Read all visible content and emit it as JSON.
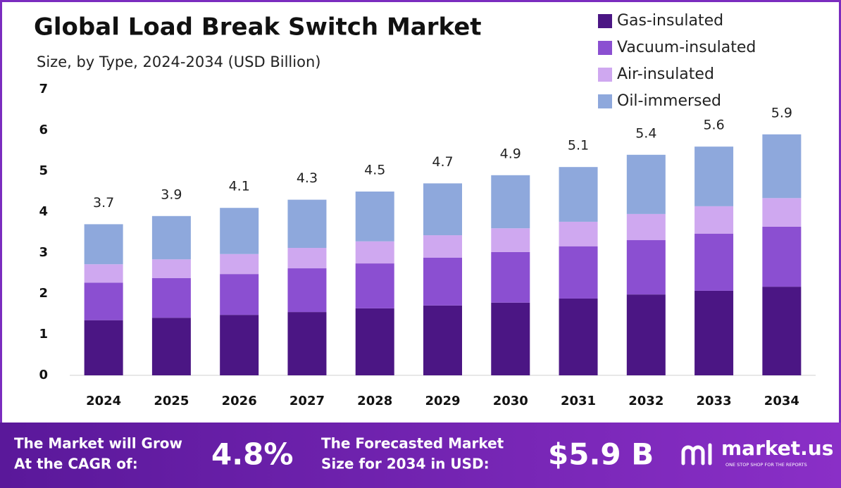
{
  "chart_data": {
    "type": "bar",
    "stacked": true,
    "title": "Global Load Break Switch Market",
    "subtitle": "Size, by Type, 2024-2034 (USD Billion)",
    "categories": [
      "2024",
      "2025",
      "2026",
      "2027",
      "2028",
      "2029",
      "2030",
      "2031",
      "2032",
      "2033",
      "2034"
    ],
    "series": [
      {
        "name": "Gas-insulated",
        "color": "#4b1684",
        "values": [
          1.35,
          1.41,
          1.48,
          1.55,
          1.64,
          1.71,
          1.78,
          1.88,
          1.98,
          2.07,
          2.17
        ]
      },
      {
        "name": "Vacuum-insulated",
        "color": "#8b4fd1",
        "values": [
          0.92,
          0.97,
          1.0,
          1.07,
          1.1,
          1.17,
          1.24,
          1.28,
          1.33,
          1.4,
          1.47
        ]
      },
      {
        "name": "Air-insulated",
        "color": "#cfa8f0",
        "values": [
          0.45,
          0.46,
          0.49,
          0.5,
          0.54,
          0.55,
          0.58,
          0.6,
          0.64,
          0.67,
          0.7
        ]
      },
      {
        "name": "Oil-immersed",
        "color": "#8ea8dc",
        "values": [
          0.98,
          1.06,
          1.13,
          1.18,
          1.22,
          1.27,
          1.3,
          1.34,
          1.45,
          1.46,
          1.56
        ]
      }
    ],
    "totals": [
      3.7,
      3.9,
      4.1,
      4.3,
      4.5,
      4.7,
      4.9,
      5.1,
      5.4,
      5.6,
      5.9
    ],
    "ylim": [
      0,
      7
    ],
    "yticks": [
      0,
      1,
      2,
      3,
      4,
      5,
      6,
      7
    ],
    "grid": false,
    "legend": "top-right"
  },
  "footer": {
    "cagr_label": [
      "The Market will Grow",
      "At the CAGR of:"
    ],
    "cagr_value": "4.8%",
    "forecast_label": [
      "The Forecasted Market",
      "Size for 2034 in USD:"
    ],
    "forecast_value": "$5.9 B",
    "brand": "market.us",
    "tagline": "ONE STOP SHOP FOR THE REPORTS"
  }
}
